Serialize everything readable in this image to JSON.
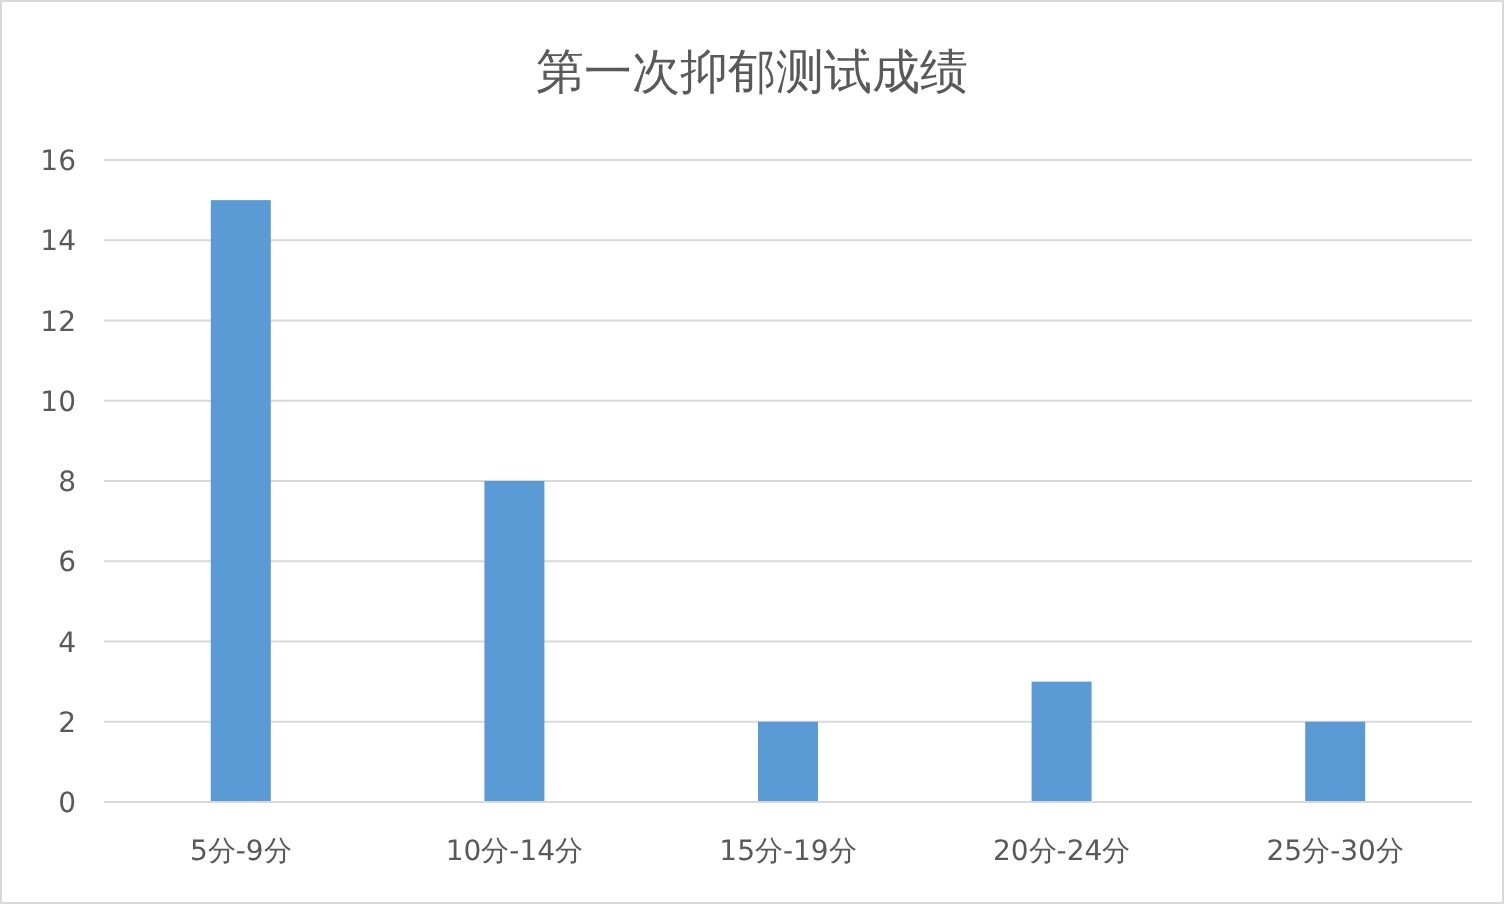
{
  "chart_data": {
    "type": "bar",
    "title": "第一次抑郁测试成绩",
    "categories": [
      "5分-9分",
      "10分-14分",
      "15分-19分",
      "20分-24分",
      "25分-30分"
    ],
    "values": [
      15,
      8,
      2,
      3,
      2
    ],
    "color": "#5b9bd5",
    "ylim": [
      0,
      16
    ],
    "yticks": [
      0,
      2,
      4,
      6,
      8,
      10,
      12,
      14,
      16
    ],
    "grid": "y",
    "legend": false
  }
}
